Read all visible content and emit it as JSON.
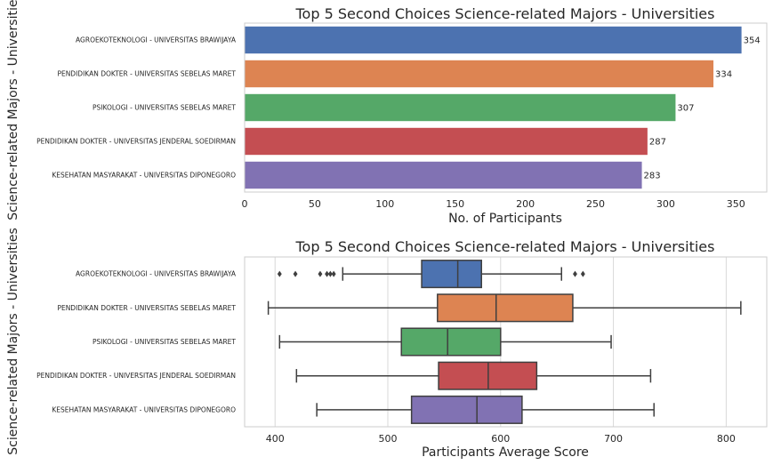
{
  "chart_data": [
    {
      "type": "bar",
      "orientation": "horizontal",
      "title": "Top 5 Second Choices Science-related Majors - Universities",
      "xlabel": "No. of Participants",
      "ylabel": "Science-related Majors - Universities",
      "xlim": [
        0,
        372
      ],
      "xticks": [
        0,
        50,
        100,
        150,
        200,
        250,
        300,
        350
      ],
      "grid": false,
      "categories": [
        "AGROEKOTEKNOLOGI - UNIVERSITAS BRAWIJAYA",
        "PENDIDIKAN DOKTER - UNIVERSITAS SEBELAS MARET",
        "PSIKOLOGI - UNIVERSITAS SEBELAS MARET",
        "PENDIDIKAN DOKTER - UNIVERSITAS JENDERAL SOEDIRMAN",
        "KESEHATAN MASYARAKAT - UNIVERSITAS DIPONEGORO"
      ],
      "values": [
        354,
        334,
        307,
        287,
        283
      ],
      "colors": [
        "#4c72b0",
        "#dd8452",
        "#55a868",
        "#c44e52",
        "#8172b3"
      ]
    },
    {
      "type": "box",
      "orientation": "horizontal",
      "title": "Top 5 Second Choices Science-related Majors - Universities",
      "xlabel": "Participants Average Score",
      "ylabel": "Science-related Majors - Universities",
      "xlim": [
        373,
        836
      ],
      "xticks": [
        400,
        500,
        600,
        700,
        800
      ],
      "grid": true,
      "categories": [
        "AGROEKOTEKNOLOGI - UNIVERSITAS BRAWIJAYA",
        "PENDIDIKAN DOKTER - UNIVERSITAS SEBELAS MARET",
        "PSIKOLOGI - UNIVERSITAS SEBELAS MARET",
        "PENDIDIKAN DOKTER - UNIVERSITAS JENDERAL SOEDIRMAN",
        "KESEHATAN MASYARAKAT - UNIVERSITAS DIPONEGORO"
      ],
      "boxes": [
        {
          "whislo": 460,
          "q1": 530,
          "med": 562,
          "q3": 583,
          "whishi": 654,
          "fliers": [
            404,
            418,
            440,
            446,
            449,
            452,
            666,
            673
          ]
        },
        {
          "whislo": 394,
          "q1": 544,
          "med": 596,
          "q3": 664,
          "whishi": 813,
          "fliers": []
        },
        {
          "whislo": 404,
          "q1": 512,
          "med": 553,
          "q3": 600,
          "whishi": 698,
          "fliers": []
        },
        {
          "whislo": 419,
          "q1": 545,
          "med": 589,
          "q3": 632,
          "whishi": 733,
          "fliers": []
        },
        {
          "whislo": 437,
          "q1": 521,
          "med": 579,
          "q3": 619,
          "whishi": 736,
          "fliers": []
        }
      ],
      "colors": [
        "#4c72b0",
        "#dd8452",
        "#55a868",
        "#c44e52",
        "#8172b3"
      ]
    }
  ]
}
